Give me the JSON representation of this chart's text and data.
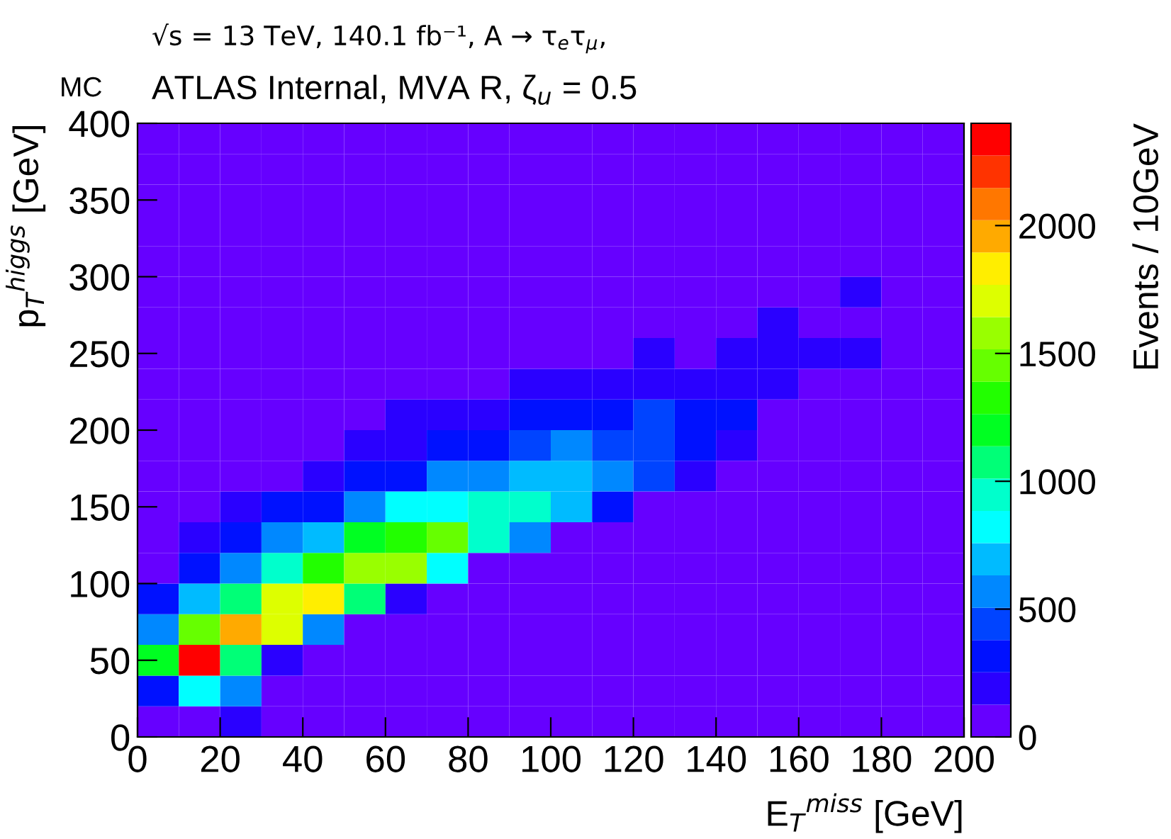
{
  "chart_data": {
    "type": "heatmap",
    "title": "√s = 13 TeV, 140.1 fb⁻¹, A → τ$_{e}$τ$_{μ}$,",
    "subtitle": "ATLAS Internal, MVA R, ζ$_{u}$ = 0.5",
    "annotations": [
      "MC"
    ],
    "xlabel": "E$_{T}$$^{miss}$ [GeV]",
    "ylabel": "p$_{T}$$^{higgs}$ [GeV]",
    "clabel": "Events / 10GeV",
    "x": [
      5,
      15,
      25,
      35,
      45,
      55,
      65,
      75,
      85,
      95,
      105,
      115,
      125,
      135,
      145,
      155,
      165,
      175,
      185,
      195
    ],
    "xlim": [
      0,
      200
    ],
    "xticks": [
      0,
      20,
      40,
      60,
      80,
      100,
      120,
      140,
      160,
      180,
      200
    ],
    "ylim": [
      0,
      400
    ],
    "yticks": [
      0,
      50,
      100,
      150,
      200,
      250,
      300,
      350,
      400
    ],
    "clim": [
      0,
      2400
    ],
    "cticks": [
      0,
      500,
      1000,
      1500,
      2000
    ],
    "cells": [
      [
        0,
        0,
        0,
        0,
        0,
        0,
        0,
        0,
        0,
        0,
        0,
        0,
        0,
        0,
        0,
        0,
        0,
        0,
        0,
        0
      ],
      [
        0,
        0,
        0,
        0,
        0,
        0,
        0,
        0,
        0,
        0,
        0,
        0,
        0,
        0,
        0,
        0,
        0,
        0,
        0,
        0
      ],
      [
        0,
        0,
        0,
        0,
        0,
        0,
        0,
        0,
        0,
        0,
        0,
        0,
        0,
        0,
        0,
        0,
        0,
        0,
        0,
        0
      ],
      [
        0,
        0,
        0,
        0,
        0,
        0,
        0,
        0,
        0,
        0,
        0,
        0,
        0,
        0,
        0,
        0,
        0,
        0,
        0,
        0
      ],
      [
        0,
        0,
        0,
        0,
        0,
        0,
        0,
        0,
        0,
        0,
        0,
        0,
        0,
        0,
        0,
        0,
        0,
        0,
        0,
        0
      ],
      [
        0,
        0,
        0,
        0,
        0,
        0,
        0,
        0,
        0,
        0,
        0,
        0,
        0,
        0,
        0,
        0,
        0,
        190,
        0,
        0
      ],
      [
        0,
        0,
        0,
        0,
        0,
        0,
        0,
        0,
        0,
        0,
        0,
        0,
        0,
        0,
        0,
        190,
        0,
        0,
        0,
        0
      ],
      [
        0,
        0,
        0,
        0,
        0,
        0,
        0,
        0,
        0,
        0,
        0,
        0,
        190,
        0,
        190,
        190,
        190,
        190,
        0,
        0
      ],
      [
        0,
        0,
        0,
        0,
        0,
        0,
        0,
        0,
        0,
        190,
        190,
        190,
        190,
        190,
        190,
        190,
        0,
        0,
        0,
        0
      ],
      [
        0,
        0,
        0,
        0,
        0,
        0,
        190,
        190,
        190,
        320,
        320,
        320,
        440,
        320,
        320,
        0,
        0,
        0,
        0,
        0
      ],
      [
        0,
        0,
        0,
        0,
        0,
        190,
        190,
        320,
        320,
        440,
        570,
        440,
        440,
        320,
        190,
        0,
        0,
        0,
        0,
        0
      ],
      [
        0,
        0,
        0,
        0,
        190,
        320,
        320,
        570,
        570,
        700,
        700,
        570,
        440,
        190,
        0,
        0,
        0,
        0,
        0,
        0
      ],
      [
        0,
        0,
        190,
        320,
        320,
        570,
        820,
        820,
        950,
        950,
        700,
        320,
        0,
        0,
        0,
        0,
        0,
        0,
        0,
        0
      ],
      [
        0,
        190,
        320,
        570,
        700,
        1200,
        1330,
        1450,
        950,
        570,
        0,
        0,
        0,
        0,
        0,
        0,
        0,
        0,
        0,
        0
      ],
      [
        0,
        320,
        570,
        950,
        1330,
        1580,
        1580,
        820,
        0,
        0,
        0,
        0,
        0,
        0,
        0,
        0,
        0,
        0,
        0,
        0
      ],
      [
        320,
        700,
        1070,
        1700,
        1830,
        1070,
        190,
        0,
        0,
        0,
        0,
        0,
        0,
        0,
        0,
        0,
        0,
        0,
        0,
        0
      ],
      [
        570,
        1450,
        1960,
        1700,
        570,
        0,
        0,
        0,
        0,
        0,
        0,
        0,
        0,
        0,
        0,
        0,
        0,
        0,
        0,
        0
      ],
      [
        1200,
        2340,
        1070,
        190,
        0,
        0,
        0,
        0,
        0,
        0,
        0,
        0,
        0,
        0,
        0,
        0,
        0,
        0,
        0,
        0
      ],
      [
        320,
        820,
        570,
        0,
        0,
        0,
        0,
        0,
        0,
        0,
        0,
        0,
        0,
        0,
        0,
        0,
        0,
        0,
        0,
        0
      ],
      [
        0,
        0,
        190,
        0,
        0,
        0,
        0,
        0,
        0,
        0,
        0,
        0,
        0,
        0,
        0,
        0,
        0,
        0,
        0,
        0
      ]
    ]
  }
}
